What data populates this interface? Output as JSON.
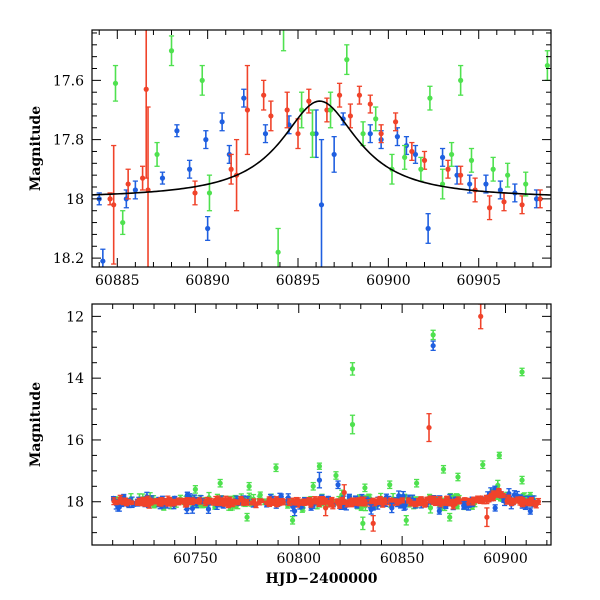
{
  "colors": {
    "blue": "#1f5fe0",
    "red": "#f0432a",
    "green": "#4fe14f",
    "model": "#000000",
    "frame": "#000000"
  },
  "chart_data": [
    {
      "type": "scatter",
      "title": "",
      "xlabel": "",
      "ylabel": "Magnitude",
      "xlim": [
        60883.6,
        60909.0
      ],
      "ylim": [
        18.23,
        17.43
      ],
      "y_inverted": true,
      "xticks": [
        60885,
        60890,
        60895,
        60900,
        60905
      ],
      "yticks": [
        17.6,
        17.8,
        18,
        18.2
      ],
      "ytick_labels": [
        "17.6",
        "17.8",
        "18",
        "18.2"
      ],
      "model_curve": {
        "color": "black",
        "baseline": 18.0,
        "peak": 17.67,
        "t_peak": 60896.2,
        "width": 2.6
      },
      "series": [
        {
          "color": "blue",
          "points": [
            {
              "x": 60884.0,
              "y": 18.0,
              "err": 0.02
            },
            {
              "x": 60884.2,
              "y": 18.21,
              "err": 0.04
            },
            {
              "x": 60885.5,
              "y": 18.0,
              "err": 0.03
            },
            {
              "x": 60886.0,
              "y": 17.97,
              "err": 0.03
            },
            {
              "x": 60887.5,
              "y": 17.93,
              "err": 0.02
            },
            {
              "x": 60888.3,
              "y": 17.77,
              "err": 0.02
            },
            {
              "x": 60889.0,
              "y": 17.9,
              "err": 0.03
            },
            {
              "x": 60889.9,
              "y": 17.8,
              "err": 0.03
            },
            {
              "x": 60890.0,
              "y": 18.1,
              "err": 0.04
            },
            {
              "x": 60890.8,
              "y": 17.74,
              "err": 0.03
            },
            {
              "x": 60891.2,
              "y": 17.85,
              "err": 0.03
            },
            {
              "x": 60892.0,
              "y": 17.66,
              "err": 0.03
            },
            {
              "x": 60893.2,
              "y": 17.78,
              "err": 0.03
            },
            {
              "x": 60894.5,
              "y": 17.75,
              "err": 0.03
            },
            {
              "x": 60896.0,
              "y": 17.78,
              "err": 0.08
            },
            {
              "x": 60896.3,
              "y": 18.02,
              "err": 0.22
            },
            {
              "x": 60897.0,
              "y": 17.85,
              "err": 0.06
            },
            {
              "x": 60897.5,
              "y": 17.73,
              "err": 0.02
            },
            {
              "x": 60899.0,
              "y": 17.78,
              "err": 0.03
            },
            {
              "x": 60899.6,
              "y": 17.8,
              "err": 0.03
            },
            {
              "x": 60900.5,
              "y": 17.79,
              "err": 0.03
            },
            {
              "x": 60901.0,
              "y": 17.82,
              "err": 0.03
            },
            {
              "x": 60901.5,
              "y": 17.85,
              "err": 0.03
            },
            {
              "x": 60902.2,
              "y": 18.1,
              "err": 0.05
            },
            {
              "x": 60903.0,
              "y": 17.86,
              "err": 0.03
            },
            {
              "x": 60903.8,
              "y": 17.92,
              "err": 0.03
            },
            {
              "x": 60904.5,
              "y": 17.95,
              "err": 0.03
            },
            {
              "x": 60905.4,
              "y": 17.95,
              "err": 0.03
            },
            {
              "x": 60906.2,
              "y": 17.97,
              "err": 0.03
            },
            {
              "x": 60907.0,
              "y": 17.98,
              "err": 0.03
            },
            {
              "x": 60908.2,
              "y": 18.0,
              "err": 0.03
            }
          ]
        },
        {
          "color": "red",
          "points": [
            {
              "x": 60884.6,
              "y": 18.0,
              "err": 0.02
            },
            {
              "x": 60884.8,
              "y": 18.02,
              "err": 0.2
            },
            {
              "x": 60885.6,
              "y": 17.95,
              "err": 0.05
            },
            {
              "x": 60886.4,
              "y": 17.93,
              "err": 0.04
            },
            {
              "x": 60886.6,
              "y": 17.63,
              "err": 0.3
            },
            {
              "x": 60886.7,
              "y": 17.97,
              "err": 0.28
            },
            {
              "x": 60889.3,
              "y": 17.98,
              "err": 0.04
            },
            {
              "x": 60891.3,
              "y": 17.9,
              "err": 0.05
            },
            {
              "x": 60891.6,
              "y": 17.92,
              "err": 0.12
            },
            {
              "x": 60892.2,
              "y": 17.7,
              "err": 0.15
            },
            {
              "x": 60893.1,
              "y": 17.65,
              "err": 0.05
            },
            {
              "x": 60893.5,
              "y": 17.72,
              "err": 0.05
            },
            {
              "x": 60894.4,
              "y": 17.7,
              "err": 0.06
            },
            {
              "x": 60895.0,
              "y": 17.78,
              "err": 0.05
            },
            {
              "x": 60895.6,
              "y": 17.67,
              "err": 0.04
            },
            {
              "x": 60896.6,
              "y": 17.7,
              "err": 0.04
            },
            {
              "x": 60897.3,
              "y": 17.65,
              "err": 0.04
            },
            {
              "x": 60897.9,
              "y": 17.72,
              "err": 0.04
            },
            {
              "x": 60898.4,
              "y": 17.65,
              "err": 0.03
            },
            {
              "x": 60899.0,
              "y": 17.68,
              "err": 0.03
            },
            {
              "x": 60899.6,
              "y": 17.78,
              "err": 0.03
            },
            {
              "x": 60900.4,
              "y": 17.74,
              "err": 0.03
            },
            {
              "x": 60901.3,
              "y": 17.84,
              "err": 0.03
            },
            {
              "x": 60902.0,
              "y": 17.87,
              "err": 0.03
            },
            {
              "x": 60903.3,
              "y": 17.9,
              "err": 0.03
            },
            {
              "x": 60904.0,
              "y": 17.92,
              "err": 0.03
            },
            {
              "x": 60904.8,
              "y": 17.97,
              "err": 0.04
            },
            {
              "x": 60905.6,
              "y": 18.03,
              "err": 0.04
            },
            {
              "x": 60906.4,
              "y": 18.01,
              "err": 0.03
            },
            {
              "x": 60907.4,
              "y": 18.02,
              "err": 0.03
            },
            {
              "x": 60908.4,
              "y": 18.0,
              "err": 0.03
            }
          ]
        },
        {
          "color": "green",
          "points": [
            {
              "x": 60884.9,
              "y": 17.61,
              "err": 0.06
            },
            {
              "x": 60885.3,
              "y": 18.08,
              "err": 0.04
            },
            {
              "x": 60887.2,
              "y": 17.85,
              "err": 0.04
            },
            {
              "x": 60888.0,
              "y": 17.5,
              "err": 0.05
            },
            {
              "x": 60889.7,
              "y": 17.6,
              "err": 0.05
            },
            {
              "x": 60890.1,
              "y": 17.98,
              "err": 0.06
            },
            {
              "x": 60893.9,
              "y": 18.18,
              "err": 0.08
            },
            {
              "x": 60894.2,
              "y": 17.42,
              "err": 0.08
            },
            {
              "x": 60895.2,
              "y": 17.7,
              "err": 0.06
            },
            {
              "x": 60895.8,
              "y": 17.78,
              "err": 0.08
            },
            {
              "x": 60896.8,
              "y": 17.7,
              "err": 0.06
            },
            {
              "x": 60897.7,
              "y": 17.53,
              "err": 0.05
            },
            {
              "x": 60898.6,
              "y": 17.78,
              "err": 0.04
            },
            {
              "x": 60899.3,
              "y": 17.73,
              "err": 0.04
            },
            {
              "x": 60900.2,
              "y": 17.9,
              "err": 0.05
            },
            {
              "x": 60900.9,
              "y": 17.86,
              "err": 0.04
            },
            {
              "x": 60901.8,
              "y": 17.9,
              "err": 0.04
            },
            {
              "x": 60902.3,
              "y": 17.66,
              "err": 0.04
            },
            {
              "x": 60903.0,
              "y": 17.95,
              "err": 0.05
            },
            {
              "x": 60903.5,
              "y": 17.85,
              "err": 0.04
            },
            {
              "x": 60904.0,
              "y": 17.6,
              "err": 0.05
            },
            {
              "x": 60904.6,
              "y": 17.87,
              "err": 0.04
            },
            {
              "x": 60905.8,
              "y": 17.9,
              "err": 0.04
            },
            {
              "x": 60906.6,
              "y": 17.92,
              "err": 0.04
            },
            {
              "x": 60907.6,
              "y": 17.95,
              "err": 0.04
            },
            {
              "x": 60908.8,
              "y": 17.55,
              "err": 0.05
            }
          ]
        }
      ]
    },
    {
      "type": "scatter",
      "title": "",
      "xlabel": "HJD−2400000",
      "ylabel": "Magnitude",
      "xlim": [
        60700,
        60922
      ],
      "ylim": [
        19.4,
        11.6
      ],
      "y_inverted": true,
      "xticks": [
        60750,
        60800,
        60850,
        60900
      ],
      "yticks": [
        12,
        14,
        16,
        18
      ],
      "ytick_labels": [
        "12",
        "14",
        "16",
        "18"
      ],
      "baseline": 18.0,
      "bump": {
        "t_start": 60884,
        "t_end": 60909,
        "peak": 17.67,
        "t_peak": 60896.2
      },
      "x_range": [
        60710,
        60917
      ],
      "series": [
        {
          "color": "blue",
          "outliers": [
            {
              "x": 60865,
              "y": 12.95,
              "err": 0.15
            },
            {
              "x": 60819,
              "y": 17.45,
              "err": 0.12
            },
            {
              "x": 60810,
              "y": 17.3,
              "err": 0.25
            },
            {
              "x": 60798,
              "y": 18.3,
              "err": 0.15
            },
            {
              "x": 60835,
              "y": 18.25,
              "err": 0.15
            },
            {
              "x": 60845,
              "y": 18.2,
              "err": 0.15
            },
            {
              "x": 60868,
              "y": 18.3,
              "err": 0.1
            },
            {
              "x": 60880,
              "y": 18.1,
              "err": 0.1
            },
            {
              "x": 60895,
              "y": 18.2,
              "err": 0.1
            },
            {
              "x": 60912,
              "y": 18.3,
              "err": 0.1
            }
          ]
        },
        {
          "color": "red",
          "outliers": [
            {
              "x": 60888,
              "y": 12.0,
              "err": 0.4
            },
            {
              "x": 60863,
              "y": 15.6,
              "err": 0.45
            },
            {
              "x": 60836,
              "y": 18.7,
              "err": 0.25
            },
            {
              "x": 60822,
              "y": 17.7,
              "err": 0.25
            },
            {
              "x": 60813,
              "y": 18.2,
              "err": 0.25
            },
            {
              "x": 60891,
              "y": 18.5,
              "err": 0.3
            }
          ]
        },
        {
          "color": "green",
          "outliers": [
            {
              "x": 60865,
              "y": 12.6,
              "err": 0.15
            },
            {
              "x": 60826,
              "y": 13.7,
              "err": 0.2
            },
            {
              "x": 60826,
              "y": 15.5,
              "err": 0.3
            },
            {
              "x": 60908,
              "y": 13.8,
              "err": 0.12
            },
            {
              "x": 60810,
              "y": 16.85,
              "err": 0.1
            },
            {
              "x": 60789,
              "y": 16.9,
              "err": 0.12
            },
            {
              "x": 60818,
              "y": 17.15,
              "err": 0.12
            },
            {
              "x": 60870,
              "y": 16.95,
              "err": 0.12
            },
            {
              "x": 60877,
              "y": 17.2,
              "err": 0.12
            },
            {
              "x": 60889,
              "y": 16.8,
              "err": 0.12
            },
            {
              "x": 60897,
              "y": 16.5,
              "err": 0.1
            },
            {
              "x": 60807,
              "y": 17.5,
              "err": 0.12
            },
            {
              "x": 60832,
              "y": 17.55,
              "err": 0.12
            },
            {
              "x": 60857,
              "y": 17.4,
              "err": 0.12
            },
            {
              "x": 60762,
              "y": 17.4,
              "err": 0.12
            },
            {
              "x": 60776,
              "y": 17.5,
              "err": 0.12
            },
            {
              "x": 60844,
              "y": 17.45,
              "err": 0.12
            },
            {
              "x": 60750,
              "y": 17.6,
              "err": 0.12
            },
            {
              "x": 60775,
              "y": 18.5,
              "err": 0.12
            },
            {
              "x": 60797,
              "y": 18.6,
              "err": 0.12
            },
            {
              "x": 60831,
              "y": 18.7,
              "err": 0.2
            },
            {
              "x": 60852,
              "y": 18.6,
              "err": 0.15
            },
            {
              "x": 60873,
              "y": 18.5,
              "err": 0.12
            },
            {
              "x": 60908,
              "y": 17.3,
              "err": 0.12
            }
          ]
        }
      ]
    }
  ]
}
